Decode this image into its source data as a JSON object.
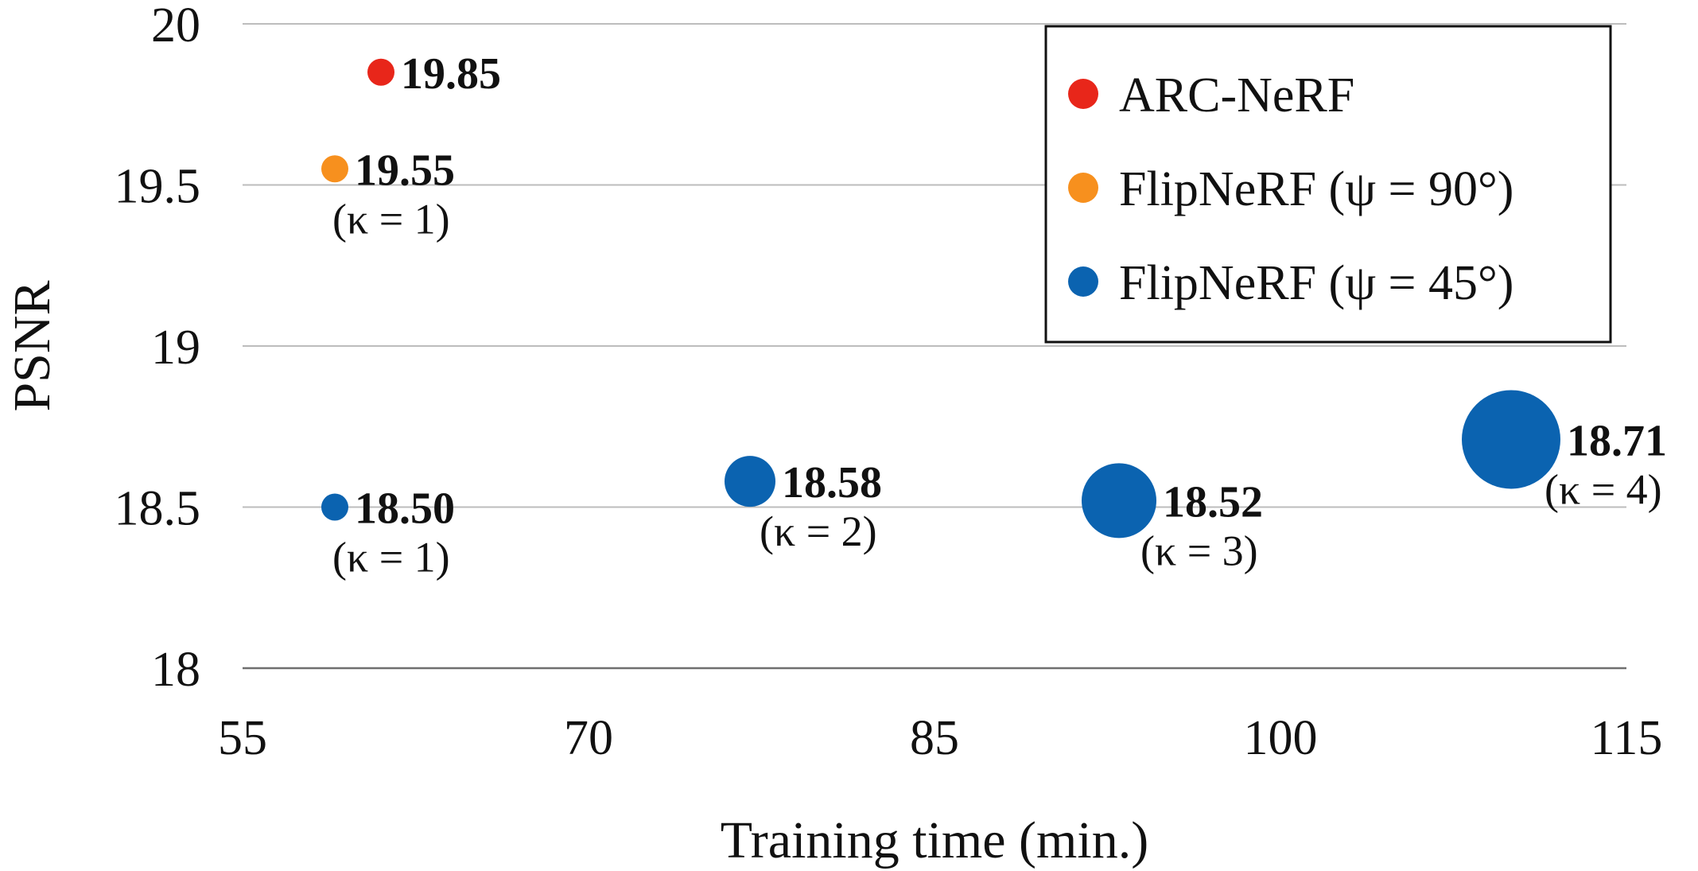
{
  "chart_data": {
    "type": "scatter",
    "xlabel": "Training time (min.)",
    "ylabel": "PSNR",
    "xlim": [
      55,
      115
    ],
    "ylim": [
      18,
      20
    ],
    "xticks": [
      55,
      70,
      85,
      100,
      115
    ],
    "yticks": [
      18,
      18.5,
      19,
      19.5,
      20
    ],
    "ytick_labels": [
      "18",
      "18.5",
      "19",
      "19.5",
      "20"
    ],
    "grid": "horizontal",
    "legend_position": "top-right",
    "series": [
      {
        "name": "ARC-NeRF",
        "color": "#e8261a",
        "points": [
          {
            "x": 61,
            "y": 19.85,
            "label": "19.85",
            "note": ""
          }
        ]
      },
      {
        "name": "FlipNeRF (ψ = 90°)",
        "color": "#f7901e",
        "points": [
          {
            "x": 59,
            "y": 19.55,
            "label": "19.55",
            "note": "(κ = 1)"
          }
        ]
      },
      {
        "name": "FlipNeRF (ψ = 45°)",
        "color": "#0b63b0",
        "points": [
          {
            "x": 59,
            "y": 18.5,
            "label": "18.50",
            "note": "(κ = 1)"
          },
          {
            "x": 77,
            "y": 18.58,
            "label": "18.58",
            "note": "(κ = 2)"
          },
          {
            "x": 93,
            "y": 18.52,
            "label": "18.52",
            "note": "(κ = 3)"
          },
          {
            "x": 110,
            "y": 18.71,
            "label": "18.71",
            "note": "(κ = 4)"
          }
        ]
      }
    ]
  }
}
